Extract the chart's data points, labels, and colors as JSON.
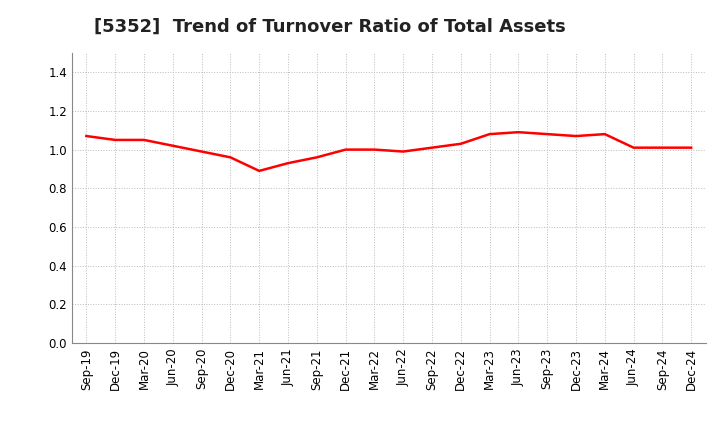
{
  "title": "[5352]  Trend of Turnover Ratio of Total Assets",
  "x_labels": [
    "Sep-19",
    "Dec-19",
    "Mar-20",
    "Jun-20",
    "Sep-20",
    "Dec-20",
    "Mar-21",
    "Jun-21",
    "Sep-21",
    "Dec-21",
    "Mar-22",
    "Jun-22",
    "Sep-22",
    "Dec-22",
    "Mar-23",
    "Jun-23",
    "Sep-23",
    "Dec-23",
    "Mar-24",
    "Jun-24",
    "Sep-24",
    "Dec-24"
  ],
  "y_values": [
    1.07,
    1.05,
    1.05,
    1.02,
    0.99,
    0.96,
    0.89,
    0.93,
    0.96,
    1.0,
    1.0,
    0.99,
    1.01,
    1.03,
    1.08,
    1.09,
    1.08,
    1.07,
    1.08,
    1.01,
    1.01,
    1.01
  ],
  "line_color": "#ff0000",
  "line_width": 1.8,
  "ylim": [
    0.0,
    1.5
  ],
  "yticks": [
    0.0,
    0.2,
    0.4,
    0.6,
    0.8,
    1.0,
    1.2,
    1.4
  ],
  "title_fontsize": 13,
  "tick_fontsize": 8.5,
  "grid_color": "#bbbbbb",
  "grid_linestyle": ":",
  "grid_linewidth": 0.7,
  "background_color": "#ffffff",
  "spine_color": "#888888"
}
